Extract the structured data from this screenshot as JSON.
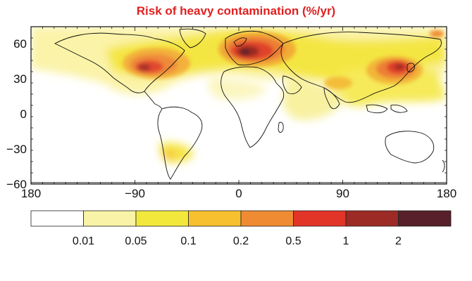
{
  "title": "Risk of heavy contamination (%/yr)",
  "map": {
    "x_ticks": [
      "180",
      "−90",
      "0",
      "90",
      "180"
    ],
    "y_ticks": [
      "60",
      "30",
      "0",
      "−30",
      "−60"
    ]
  },
  "legend": {
    "bins": [
      {
        "color": "#ffffff"
      },
      {
        "color": "#f8f3a6"
      },
      {
        "color": "#f2e83c"
      },
      {
        "color": "#f7c02e"
      },
      {
        "color": "#ef8c33"
      },
      {
        "color": "#e23528"
      },
      {
        "color": "#9b2b24"
      },
      {
        "color": "#57202a"
      }
    ],
    "labels": [
      "0.01",
      "0.05",
      "0.1",
      "0.2",
      "0.5",
      "1",
      "2"
    ]
  },
  "colors": {
    "title": "#e02020",
    "ocean_low": "#fbf6b8",
    "land_outline": "#111111"
  }
}
